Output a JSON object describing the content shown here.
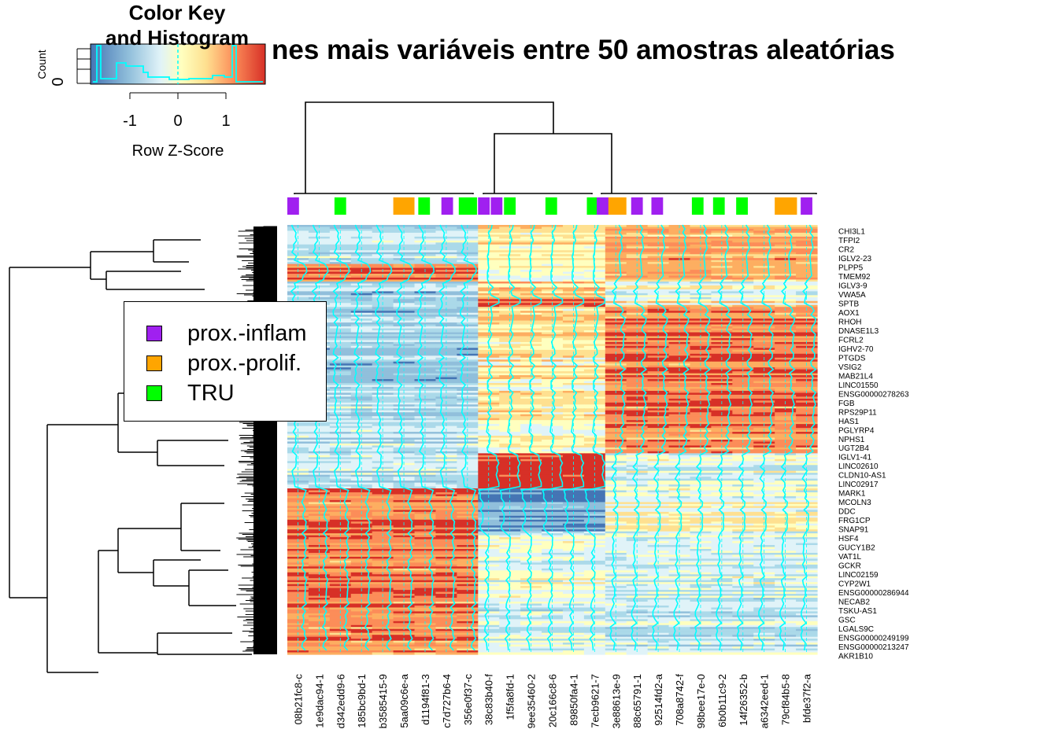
{
  "main_title": "nes mais variáveis entre 50 amostras aleatórias",
  "colors": {
    "prox_inflam": "#A020F0",
    "prox_prolif": "#FFA500",
    "TRU": "#00FF00",
    "trace": "#00FFFF"
  },
  "legend": {
    "items": [
      {
        "label": "prox.-inflam",
        "color": "#A020F0"
      },
      {
        "label": "prox.-prolif.",
        "color": "#FFA500"
      },
      {
        "label": "TRU",
        "color": "#00FF00"
      }
    ]
  },
  "chart_data": {
    "type": "heatmap",
    "color_scale": [
      "#4575B4",
      "#91BFDB",
      "#E0F3F8",
      "#FFFFBF",
      "#FEE090",
      "#FC8D59",
      "#D73027"
    ],
    "color_key": {
      "title": "Color Key\nand Histogram",
      "xlabel": "Row Z-Score",
      "ylabel": "Count",
      "xticks": [
        "-1",
        "0",
        "1"
      ],
      "ytick": "0"
    },
    "columns": [
      "08b21fc8-c",
      "1e9dac94-1",
      "d342edd9-6",
      "185bc9bd-1",
      "b3585415-9",
      "5aa09c6e-a",
      "d1194f81-3",
      "c7d727b6-4",
      "356e0f37-c",
      "38c83b40-f",
      "1f5fa8fd-1",
      "9ee35460-2",
      "20c166c8-6",
      "89850fa4-1",
      "7ecb9621-7",
      "3e88613e-9",
      "88c65791-1",
      "92514fd2-a",
      "708a8742-f",
      "98bee17e-0",
      "6b0b11c9-2",
      "14f26352-b",
      "a6342eed-1",
      "79cf84b5-8",
      "bfde37f2-a"
    ],
    "rows": [
      "CHI3L1",
      "TFPI2",
      "CR2",
      "IGLV2-23",
      "PLPP5",
      "TMEM92",
      "IGLV3-9",
      "VWA5A",
      "SPTB",
      "AOX1",
      "RHOH",
      "DNASE1L3",
      "FCRL2",
      "IGHV2-70",
      "PTGDS",
      "VSIG2",
      "MAB21L4",
      "LINC01550",
      "ENSG00000278263",
      "FGB",
      "RPS29P11",
      "HAS1",
      "PGLYRP4",
      "NPHS1",
      "UGT2B4",
      "IGLV1-41",
      "LINC02610",
      "CLDN10-AS1",
      "LINC02917",
      "MARK1",
      "MCOLN3",
      "DDC",
      "FRG1CP",
      "SNAP91",
      "HSF4",
      "GUCY1B2",
      "VAT1L",
      "GCKR",
      "LINC02159",
      "CYP2W1",
      "ENSG00000286944",
      "NECAB2",
      "TSKU-AS1",
      "GSC",
      "LGALS9C",
      "ENSG00000249199",
      "ENSG00000213247",
      "AKR1B10"
    ]
  }
}
